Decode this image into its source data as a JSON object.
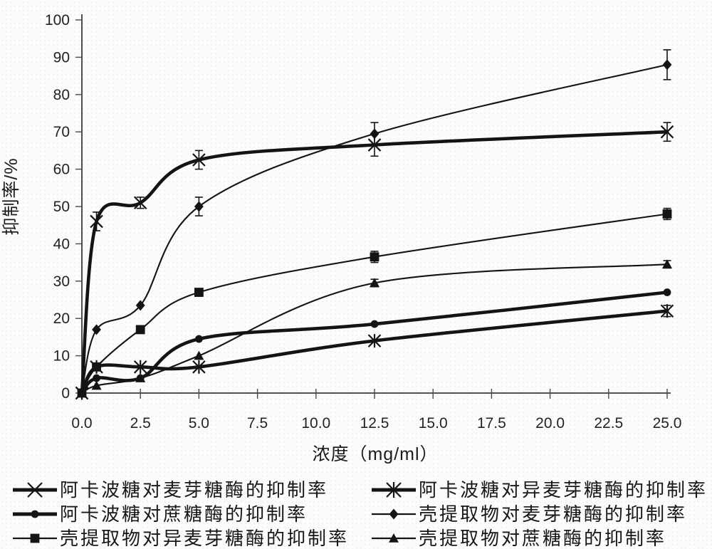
{
  "figure": {
    "background": "#fcfcfa",
    "ink": "#141414",
    "axis_color": "#3a3a3a",
    "tick_label_color": "#232323"
  },
  "chart_data": {
    "type": "line",
    "title": "",
    "xlabel": "浓度（mg/ml）",
    "ylabel": "抑制率/%",
    "grid": false,
    "legend_position": "bottom",
    "xlim": [
      0,
      25.6
    ],
    "ylim": [
      0,
      100
    ],
    "x_tick_values": [
      0,
      2.5,
      5,
      7.5,
      10,
      12.5,
      15,
      17.5,
      20,
      22.5,
      25
    ],
    "x_tick_labels": [
      "0.0",
      "2.5",
      "5.0",
      "7.5",
      "10.0",
      "12.5",
      "15.0",
      "17.5",
      "20.0",
      "22.5",
      "25.0"
    ],
    "y_tick_values": [
      0,
      10,
      20,
      30,
      40,
      50,
      60,
      70,
      80,
      90,
      100
    ],
    "y_tick_labels": [
      "0",
      "10",
      "20",
      "30",
      "40",
      "50",
      "60",
      "70",
      "80",
      "90",
      "100"
    ],
    "x": [
      0,
      0.625,
      2.5,
      5,
      12.5,
      25
    ],
    "series": [
      {
        "name": "acarbose-maltase",
        "label": "阿卡波糖对麦芽糖酶的抑制率",
        "marker": "x-cross",
        "line": "thick",
        "values": [
          0,
          46,
          51,
          62.5,
          66.5,
          70
        ],
        "errors": [
          0,
          2.5,
          1.5,
          2.5,
          3,
          2.5
        ]
      },
      {
        "name": "acarbose-isomaltase",
        "label": "阿卡波糖对异麦芽糖酶的抑制率",
        "marker": "asterisk",
        "line": "thick",
        "values": [
          0,
          7,
          7,
          7,
          14,
          22
        ],
        "errors": [
          0,
          0,
          0,
          0,
          0,
          1.5
        ]
      },
      {
        "name": "acarbose-sucrase",
        "label": "阿卡波糖对蔗糖酶的抑制率",
        "marker": "circle",
        "line": "thick",
        "values": [
          0,
          4,
          4,
          14.5,
          18.5,
          27
        ],
        "errors": [
          0,
          0,
          0,
          0,
          0,
          0
        ]
      },
      {
        "name": "shell-extract-maltase",
        "label": "壳提取物对麦芽糖酶的抑制率",
        "marker": "diamond",
        "line": "thin",
        "values": [
          0,
          17,
          23.5,
          50,
          69.5,
          88
        ],
        "errors": [
          0,
          0,
          0,
          2.5,
          3,
          4
        ]
      },
      {
        "name": "shell-extract-isomaltase",
        "label": "壳提取物对异麦芽糖酶的抑制率",
        "marker": "square",
        "line": "thin",
        "values": [
          0,
          7,
          17,
          27,
          36.5,
          48
        ],
        "errors": [
          0,
          0,
          0,
          0,
          1.5,
          1.5
        ]
      },
      {
        "name": "shell-extract-sucrase",
        "label": "壳提取物对蔗糖酶的抑制率",
        "marker": "triangle",
        "line": "thin",
        "values": [
          0,
          2,
          4,
          10,
          29.5,
          34.5
        ],
        "errors": [
          0,
          0,
          0,
          0,
          1,
          1
        ]
      }
    ]
  }
}
